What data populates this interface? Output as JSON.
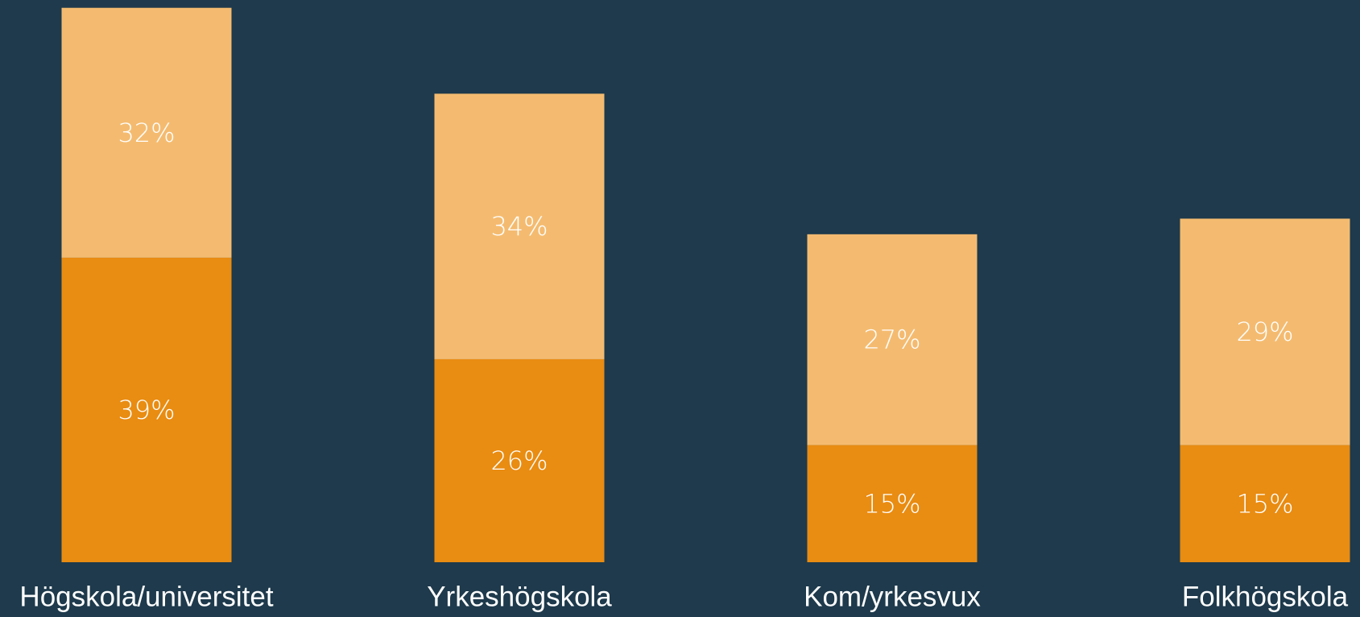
{
  "chart_data": {
    "type": "stacked_bar",
    "categories": [
      "Högskola/universitet",
      "Yrkeshögskola",
      "Kom/yrkesvux",
      "Folkhögskola"
    ],
    "series": [
      {
        "color": "#e98c12",
        "values": [
          39,
          26,
          15,
          15
        ],
        "value_labels": [
          "39%",
          "26%",
          "15%",
          "15%"
        ]
      },
      {
        "color": "#f4bb70",
        "values": [
          32,
          34,
          27,
          29
        ],
        "value_labels": [
          "32%",
          "34%",
          "27%",
          "29%"
        ]
      }
    ],
    "ylim": [
      0,
      72
    ],
    "background": "#1e3a4c"
  }
}
